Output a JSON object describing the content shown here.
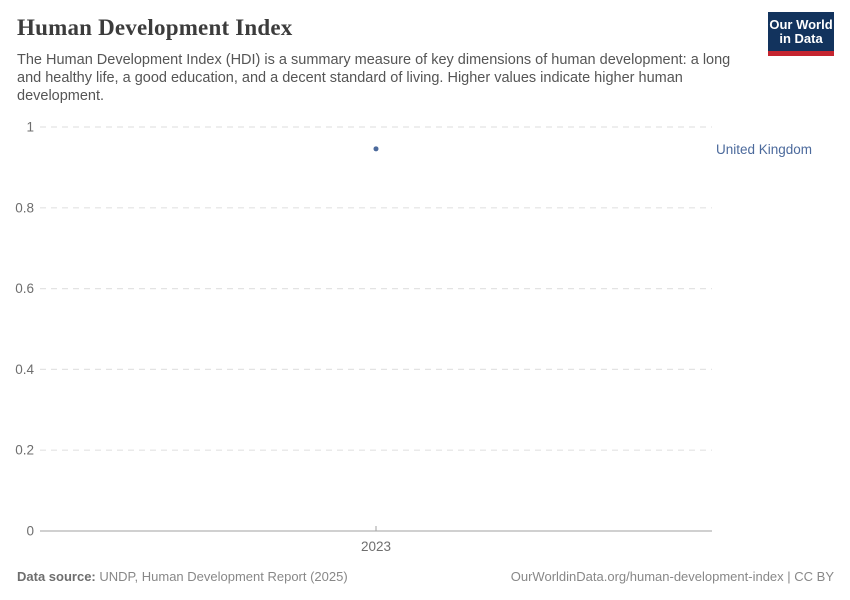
{
  "header": {
    "title": "Human Development Index",
    "subtitle": "The Human Development Index (HDI) is a summary measure of key dimensions of human development: a long and healthy life, a good education, and a decent standard of living. Higher values indicate higher human development."
  },
  "logo": {
    "line1": "Our World",
    "line2": "in Data",
    "bg_color": "#12335d",
    "accent_color": "#c5242f",
    "text_color": "#ffffff"
  },
  "chart_data": {
    "type": "scatter",
    "title": "Human Development Index",
    "x": [
      2023
    ],
    "series": [
      {
        "name": "United Kingdom",
        "values": [
          0.946
        ],
        "color": "#4c6a9c"
      }
    ],
    "xlabel": "",
    "ylabel": "",
    "ylim": [
      0,
      1
    ],
    "yticks": [
      0,
      0.2,
      0.4,
      0.6,
      0.8,
      1
    ],
    "ytick_labels": [
      "0",
      "0.2",
      "0.4",
      "0.6",
      "0.8",
      "1"
    ],
    "xtick_labels": [
      "2023"
    ],
    "grid": "horizontal dashed",
    "legend_position": "right-entity-label",
    "gridline_color": "#e3e3e3",
    "axis_color": "#a1a1a1",
    "tick_label_color": "#6e6e6e"
  },
  "footer": {
    "datasource_label": "Data source:",
    "datasource_value": " UNDP, Human Development Report (2025)",
    "credit": "OurWorldinData.org/human-development-index | CC BY"
  }
}
